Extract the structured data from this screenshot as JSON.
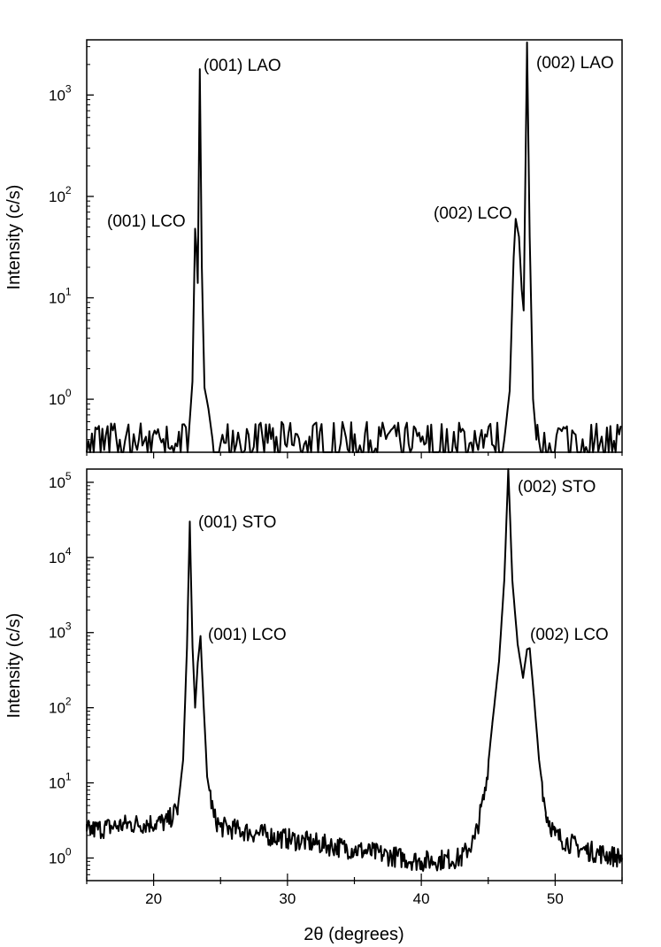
{
  "chart_data": [
    {
      "type": "line",
      "panel": "top",
      "ylabel": "Intensity (c/s)",
      "xlim": [
        15,
        55
      ],
      "ylim": [
        0.3,
        3500
      ],
      "y_scale": "log",
      "y_ticks": [
        {
          "value": 1,
          "base": "10",
          "exp": "0"
        },
        {
          "value": 10,
          "base": "10",
          "exp": "1"
        },
        {
          "value": 100,
          "base": "10",
          "exp": "2"
        },
        {
          "value": 1000,
          "base": "10",
          "exp": "3"
        }
      ],
      "grid": false,
      "series": [
        {
          "baseline": [
            0.3,
            0.6
          ],
          "points": [
            [
              22.6,
              0.4
            ],
            [
              22.9,
              1.5
            ],
            [
              23.1,
              48
            ],
            [
              23.2,
              30
            ],
            [
              23.3,
              14
            ],
            [
              23.45,
              1800
            ],
            [
              23.6,
              20
            ],
            [
              23.8,
              1.3
            ],
            [
              24.1,
              0.8
            ],
            [
              24.4,
              0.4
            ],
            [
              46.2,
              0.4
            ],
            [
              46.6,
              1.2
            ],
            [
              46.9,
              25
            ],
            [
              47.05,
              60
            ],
            [
              47.3,
              40
            ],
            [
              47.5,
              12
            ],
            [
              47.65,
              7.5
            ],
            [
              47.9,
              3300
            ],
            [
              48.1,
              40
            ],
            [
              48.35,
              1.0
            ],
            [
              48.6,
              0.4
            ]
          ]
        }
      ],
      "annotations": [
        {
          "text": "(001) LAO",
          "x": 23.5,
          "y": 1800
        },
        {
          "text": "(001) LCO",
          "x": 23.1,
          "y": 48
        },
        {
          "text": "(002) LCO",
          "x": 47.05,
          "y": 60
        },
        {
          "text": "(002) LAO",
          "x": 47.9,
          "y": 3300
        }
      ]
    },
    {
      "type": "line",
      "panel": "bottom",
      "xlabel": "2θ (degrees)",
      "ylabel": "Intensity (c/s)",
      "xlim": [
        15,
        55
      ],
      "ylim": [
        0.5,
        150000
      ],
      "y_scale": "log",
      "x_ticks": [
        "20",
        "30",
        "40",
        "50"
      ],
      "y_ticks": [
        {
          "value": 1,
          "base": "10",
          "exp": "0"
        },
        {
          "value": 10,
          "base": "10",
          "exp": "1"
        },
        {
          "value": 100,
          "base": "10",
          "exp": "2"
        },
        {
          "value": 1000,
          "base": "10",
          "exp": "3"
        },
        {
          "value": 10000,
          "base": "10",
          "exp": "4"
        },
        {
          "value": 100000,
          "base": "10",
          "exp": "5"
        }
      ],
      "grid": false,
      "series": [
        {
          "points": [
            [
              15,
              2.3
            ],
            [
              18,
              2.8
            ],
            [
              21,
              3.0
            ],
            [
              21.8,
              4.5
            ],
            [
              22.2,
              20
            ],
            [
              22.5,
              700
            ],
            [
              22.7,
              30000
            ],
            [
              22.9,
              700
            ],
            [
              23.1,
              100
            ],
            [
              23.3,
              400
            ],
            [
              23.5,
              900
            ],
            [
              23.7,
              150
            ],
            [
              24.0,
              12
            ],
            [
              24.5,
              3.5
            ],
            [
              25,
              2.6
            ],
            [
              30,
              1.8
            ],
            [
              35,
              1.3
            ],
            [
              40,
              0.9
            ],
            [
              43,
              1.0
            ],
            [
              44,
              1.8
            ],
            [
              44.8,
              8
            ],
            [
              45.3,
              60
            ],
            [
              45.8,
              400
            ],
            [
              46.2,
              5000
            ],
            [
              46.5,
              150000
            ],
            [
              46.8,
              5000
            ],
            [
              47.2,
              700
            ],
            [
              47.6,
              250
            ],
            [
              47.9,
              600
            ],
            [
              48.1,
              620
            ],
            [
              48.4,
              150
            ],
            [
              48.8,
              20
            ],
            [
              49.3,
              4
            ],
            [
              50,
              2.0
            ],
            [
              52,
              1.3
            ],
            [
              55,
              1.0
            ]
          ]
        }
      ],
      "annotations": [
        {
          "text": "(001) STO",
          "x": 22.7,
          "y": 30000
        },
        {
          "text": "(001) LCO",
          "x": 23.5,
          "y": 900
        },
        {
          "text": "(002) STO",
          "x": 46.5,
          "y": 150000
        },
        {
          "text": "(002) LCO",
          "x": 48.1,
          "y": 620
        }
      ]
    }
  ]
}
